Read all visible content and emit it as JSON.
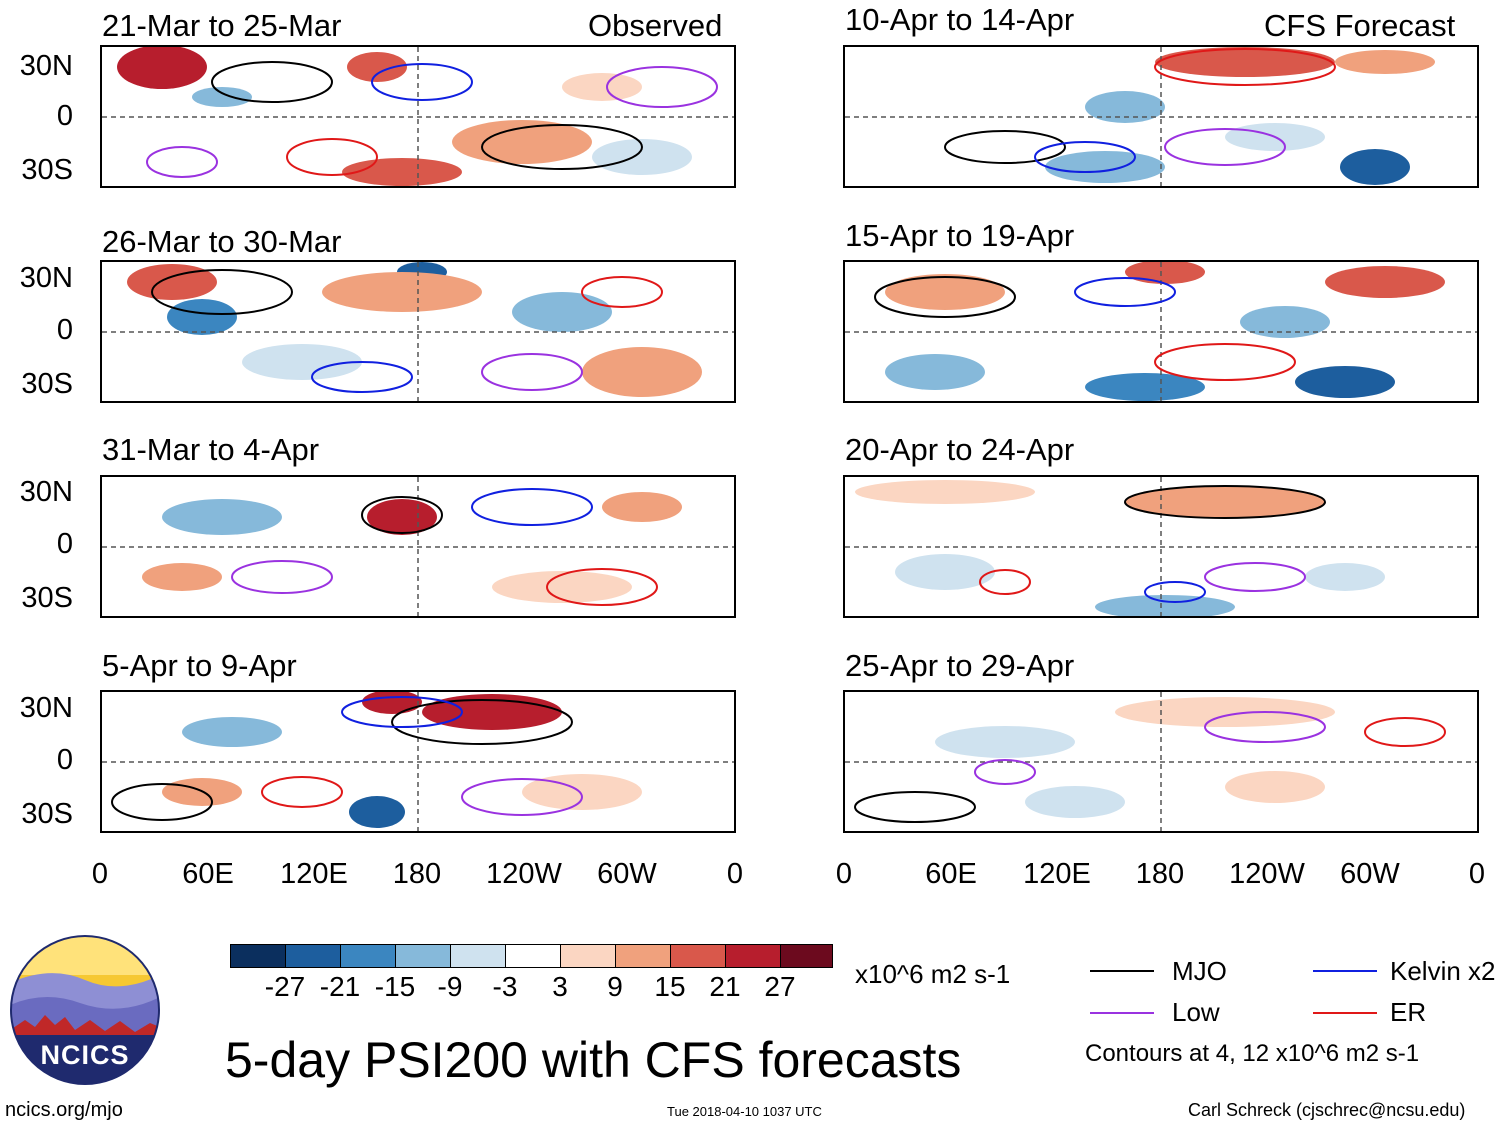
{
  "title": "5-day PSI200 with CFS forecasts",
  "website": "ncics.org/mjo",
  "timestamp": "Tue 2018-04-10 1037 UTC",
  "credit": "Carl Schreck (cjschrec@ncsu.edu)",
  "logo_text": "NCICS",
  "observed": {
    "label": "Observed",
    "panels": [
      {
        "title": "21-Mar to 25-Mar"
      },
      {
        "title": "26-Mar to 30-Mar"
      },
      {
        "title": "31-Mar to 4-Apr"
      },
      {
        "title": "5-Apr to 9-Apr"
      }
    ]
  },
  "forecast": {
    "label": "CFS Forecast",
    "panels": [
      {
        "title": "10-Apr to 14-Apr"
      },
      {
        "title": "15-Apr to 19-Apr"
      },
      {
        "title": "20-Apr to 24-Apr"
      },
      {
        "title": "25-Apr to 29-Apr"
      }
    ]
  },
  "y_ticks": [
    "30N",
    "0",
    "30S"
  ],
  "x_ticks": [
    "0",
    "60E",
    "120E",
    "180",
    "120W",
    "60W",
    "0"
  ],
  "colorbar": {
    "units": "x10^6 m2 s-1",
    "labels": [
      "-27",
      "-21",
      "-15",
      "-9",
      "-3",
      "3",
      "9",
      "15",
      "21",
      "27"
    ],
    "colors": [
      "#0b2f5e",
      "#1d5e9e",
      "#3b86c0",
      "#86b9da",
      "#cfe2ef",
      "#ffffff",
      "#fbd6c2",
      "#f0a17d",
      "#d9584b",
      "#b71e2d",
      "#6c0a1e"
    ]
  },
  "legend": {
    "items": [
      {
        "label": "MJO",
        "color": "#000000"
      },
      {
        "label": "Kelvin x2",
        "color": "#1020e0"
      },
      {
        "label": "Low",
        "color": "#9a32e0"
      },
      {
        "label": "ER",
        "color": "#e01818"
      }
    ],
    "note": "Contours at 4, 12 x10^6 m2 s-1"
  }
}
